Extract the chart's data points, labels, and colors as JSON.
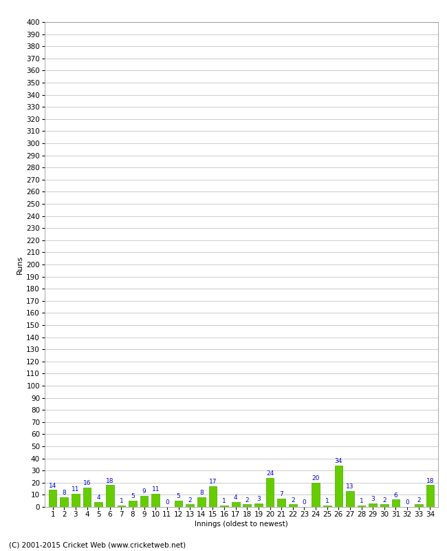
{
  "values": [
    14,
    8,
    11,
    16,
    4,
    18,
    1,
    5,
    9,
    11,
    0,
    5,
    2,
    8,
    17,
    1,
    4,
    2,
    3,
    24,
    7,
    2,
    0,
    20,
    1,
    34,
    13,
    1,
    3,
    2,
    6,
    0,
    2,
    18
  ],
  "innings": [
    1,
    2,
    3,
    4,
    5,
    6,
    7,
    8,
    9,
    10,
    11,
    12,
    13,
    14,
    15,
    16,
    17,
    18,
    19,
    20,
    21,
    22,
    23,
    24,
    25,
    26,
    27,
    28,
    29,
    30,
    31,
    32,
    33,
    34
  ],
  "bar_color": "#66cc00",
  "bar_edge_color": "#44aa00",
  "label_color": "#0000cc",
  "ylabel": "Runs",
  "xlabel": "Innings (oldest to newest)",
  "ylim": [
    0,
    400
  ],
  "yticks": [
    0,
    10,
    20,
    30,
    40,
    50,
    60,
    70,
    80,
    90,
    100,
    110,
    120,
    130,
    140,
    150,
    160,
    170,
    180,
    190,
    200,
    210,
    220,
    230,
    240,
    250,
    260,
    270,
    280,
    290,
    300,
    310,
    320,
    330,
    340,
    350,
    360,
    370,
    380,
    390,
    400
  ],
  "background_color": "#ffffff",
  "grid_color": "#cccccc",
  "footer": "(C) 2001-2015 Cricket Web (www.cricketweb.net)",
  "label_fontsize": 6.5,
  "axis_fontsize": 7.5,
  "ylabel_fontsize": 8
}
